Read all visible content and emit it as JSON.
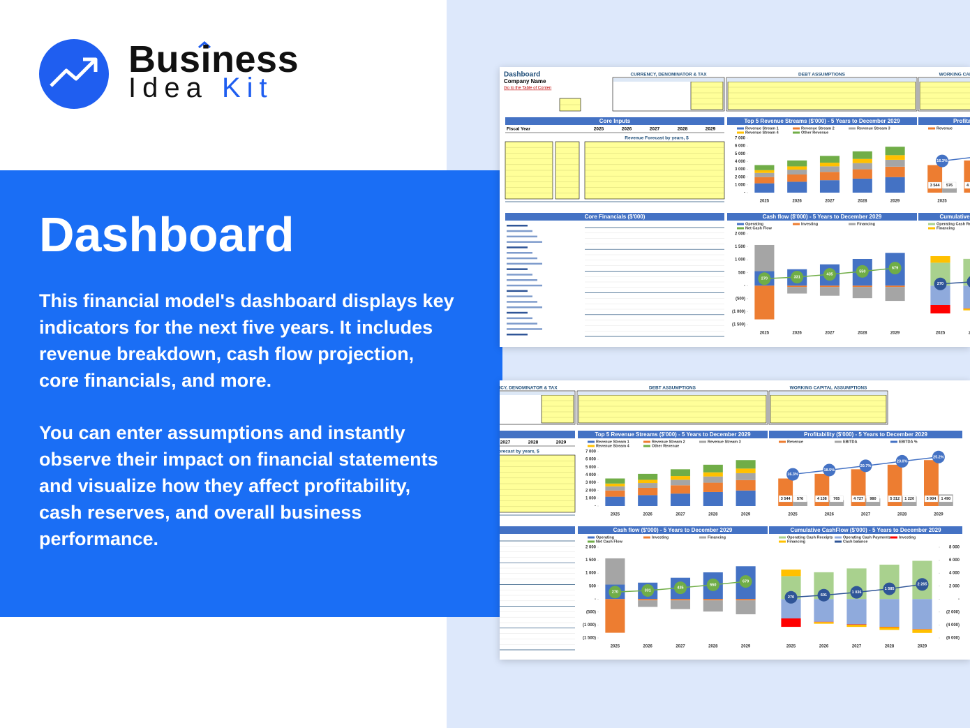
{
  "brand": {
    "word1": "Business",
    "word2": "Idea",
    "word3": "Kit"
  },
  "heading": "Dashboard",
  "paragraphs": [
    "This financial model's dashboard displays key indicators for the next five years. It includes revenue breakdown, cash flow projection, core financials, and more.",
    "You can enter assumptions and instantly observe their impact on financial statements and visualize how they affect profitability, cash reserves, and overall business performance."
  ],
  "sheet": {
    "title": "Dashboard",
    "company": "Company Name",
    "link": "Go to the Table of Conten",
    "fiscal_year": "Fiscal Year",
    "sections": [
      "CURRENCY, DENOMINATOR & TAX",
      "DEBT ASSUMPTIONS",
      "WORKING CAPITAL ASSUMPTIONS",
      "Core Inputs",
      "Core Financials ($'000)",
      "Revenue Forecast by years, $"
    ]
  },
  "chart_data": [
    {
      "type": "bar",
      "stacked": true,
      "title": "Top 5 Revenue Streams ($'000) - 5 Years to December 2029",
      "categories": [
        "2025",
        "2026",
        "2027",
        "2028",
        "2029"
      ],
      "series": [
        {
          "name": "Revenue Stream 1",
          "color": "#4472c4",
          "values": [
            1200,
            1400,
            1600,
            1800,
            2000
          ]
        },
        {
          "name": "Revenue Stream 2",
          "color": "#ed7d31",
          "values": [
            800,
            934,
            1067,
            1200,
            1334
          ]
        },
        {
          "name": "Revenue Stream 3",
          "color": "#a5a5a5",
          "values": [
            534,
            623,
            712,
            800,
            890
          ]
        },
        {
          "name": "Revenue Stream 4",
          "color": "#ffc000",
          "values": [
            356,
            416,
            475,
            534,
            594
          ]
        },
        {
          "name": "Other Revenue",
          "color": "#70ad47",
          "values": [
            654,
            765,
            873,
            978,
            1086
          ]
        }
      ],
      "ylim": [
        0,
        7000
      ],
      "yticks": [
        {
          "value": 0,
          "label": "-"
        },
        {
          "value": 1000,
          "label": "1 000"
        },
        {
          "value": 2000,
          "label": "2 000"
        },
        {
          "value": 3000,
          "label": "3 000"
        },
        {
          "value": 4000,
          "label": "4 000"
        },
        {
          "value": 5000,
          "label": "5 000"
        },
        {
          "value": 6000,
          "label": "6 000"
        },
        {
          "value": 7000,
          "label": "7 000"
        }
      ]
    },
    {
      "type": "bar",
      "stacked": true,
      "title": "Cash flow ($'000) - 5 Years to December 2029",
      "categories": [
        "2025",
        "2026",
        "2027",
        "2028",
        "2029"
      ],
      "series": [
        {
          "name": "Operating",
          "color": "#4472c4",
          "values": [
            559,
            634,
            823,
            1031,
            1266
          ]
        },
        {
          "name": "Investing",
          "color": "#ed7d31",
          "values": [
            -1300,
            -50,
            -50,
            -50,
            -50
          ]
        },
        {
          "name": "Financing",
          "color": "#a5a5a5",
          "values": [
            1011,
            -253,
            -338,
            -431,
            -537
          ]
        },
        {
          "name": "Net Cash Flow",
          "type": "line",
          "color": "#70ad47",
          "values": [
            270,
            331,
            435,
            550,
            679
          ]
        }
      ],
      "ylim": [
        -1500,
        2000
      ],
      "yticks": [
        {
          "value": -1500,
          "label": "(1 500)"
        },
        {
          "value": -1000,
          "label": "(1 000)"
        },
        {
          "value": -500,
          "label": "(500)"
        },
        {
          "value": 0,
          "label": "-"
        },
        500,
        {
          "value": 1000,
          "label": "1 000"
        },
        {
          "value": 1500,
          "label": "1 500"
        },
        {
          "value": 2000,
          "label": "2 000"
        }
      ]
    },
    {
      "type": "bar",
      "stacked": false,
      "title": "Profitability ($'000) - 5 Years to December 2029",
      "categories": [
        "2025",
        "2026",
        "2027",
        "2028",
        "2029"
      ],
      "series": [
        {
          "name": "Revenue",
          "color": "#ed7d31",
          "values": [
            3544,
            4138,
            4727,
            5312,
            5904
          ],
          "value_labels": [
            "3 544",
            "4 138",
            "4 727",
            "5 312",
            "5 904"
          ]
        },
        {
          "name": "EBITDA",
          "color": "#a5a5a5",
          "values": [
            576,
            765,
            980,
            1220,
            1490
          ],
          "value_labels": [
            "576",
            "765",
            "980",
            "1 220",
            "1 490"
          ]
        },
        {
          "name": "EBITDA %",
          "type": "line",
          "axis": "y2",
          "color": "#4472c4",
          "values": [
            16.3,
            18.5,
            20.7,
            23.0,
            25.2
          ],
          "value_labels": [
            "16.3%",
            "18.5%",
            "20.7%",
            "23.0%",
            "25.2%"
          ]
        }
      ],
      "ylim": [
        0,
        7000
      ],
      "y2lim": [
        0,
        28
      ]
    },
    {
      "type": "bar",
      "stacked": true,
      "y_axis_position": "right",
      "title": "Cumulative CashFlow ($'000) - 5 Years to December 2029",
      "categories": [
        "2025",
        "2026",
        "2027",
        "2028",
        "2029"
      ],
      "series": [
        {
          "name": "Operating Cash Receipts",
          "color": "#a9d18e",
          "values": [
            3544,
            4138,
            4727,
            5312,
            5904
          ]
        },
        {
          "name": "Operating Cash Payments",
          "color": "#8faadc",
          "values": [
            -2985,
            -3504,
            -3904,
            -4281,
            -4638
          ]
        },
        {
          "name": "Investing",
          "color": "#ff0000",
          "values": [
            -1300,
            -50,
            -50,
            -50,
            -50
          ]
        },
        {
          "name": "Financing",
          "color": "#ffc000",
          "values": [
            1011,
            -253,
            -338,
            -431,
            -537
          ]
        },
        {
          "name": "Cash balance",
          "type": "line",
          "color": "#2f5597",
          "values": [
            270,
            601,
            1036,
            1585,
            2265
          ],
          "value_labels": [
            "270",
            "601",
            "1 036",
            "1 585",
            "2 265"
          ]
        }
      ],
      "ylim": [
        -6000,
        8000
      ],
      "yticks": [
        {
          "value": -6000,
          "label": "(6 000)"
        },
        {
          "value": -4000,
          "label": "(4 000)"
        },
        {
          "value": -2000,
          "label": "(2 000)"
        },
        {
          "value": 0,
          "label": "-"
        },
        {
          "value": 2000,
          "label": "2 000"
        },
        {
          "value": 4000,
          "label": "4 000"
        },
        {
          "value": 6000,
          "label": "6 000"
        },
        {
          "value": 8000,
          "label": "8 000"
        }
      ]
    }
  ]
}
